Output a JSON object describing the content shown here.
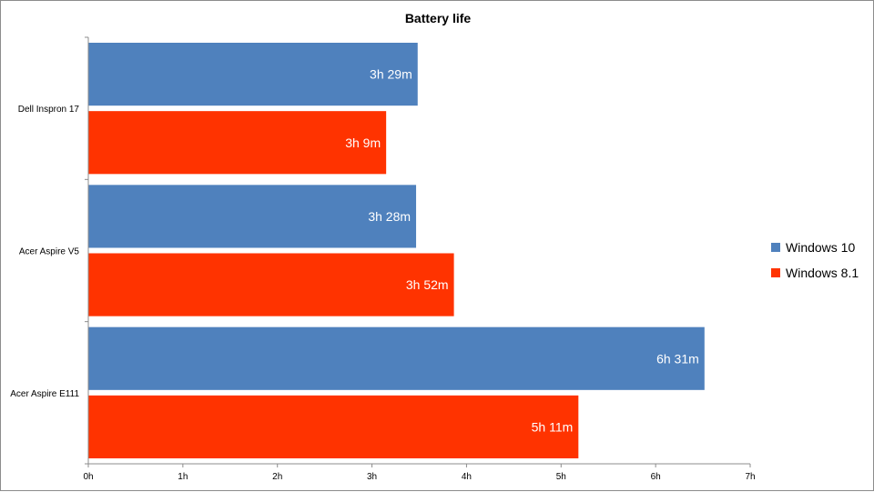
{
  "chart_data": {
    "type": "bar",
    "orientation": "horizontal",
    "title": "Battery life",
    "categories": [
      "Dell Inspron 17",
      "Acer Aspire V5",
      "Acer Aspire E111"
    ],
    "x_ticks": [
      "0h",
      "1h",
      "2h",
      "3h",
      "4h",
      "5h",
      "6h",
      "7h"
    ],
    "xlim": [
      0,
      7
    ],
    "grid": false,
    "legend_position": "right",
    "series": [
      {
        "name": "Windows 10",
        "color": "#4f81bd",
        "values": [
          3.4833,
          3.4667,
          6.5167
        ],
        "labels": [
          "3h 29m",
          "3h 28m",
          "6h 31m"
        ]
      },
      {
        "name": "Windows 8.1",
        "color": "#ff3300",
        "values": [
          3.15,
          3.8667,
          5.1833
        ],
        "labels": [
          "3h 9m",
          "3h 52m",
          "5h 11m"
        ]
      }
    ]
  }
}
